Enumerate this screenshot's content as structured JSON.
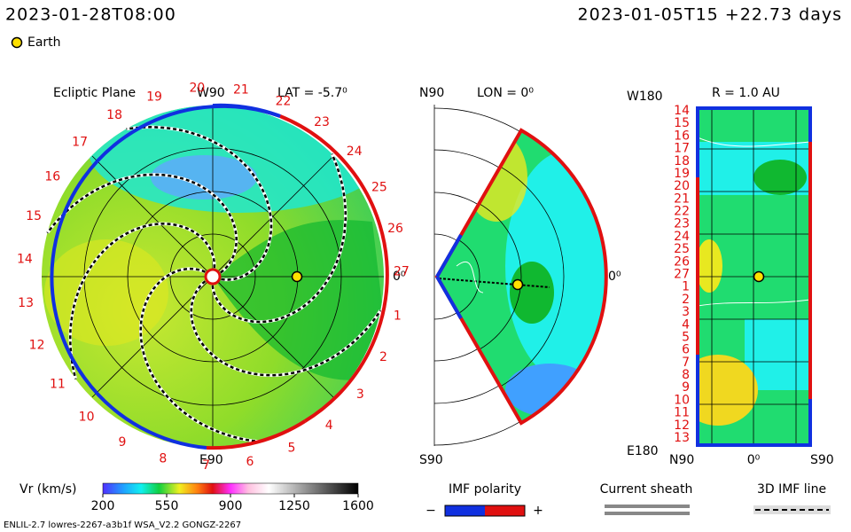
{
  "header": {
    "time": "2023-01-28T08:00",
    "run": "2023-01-05T15 +22.73 days",
    "earth_label": "Earth"
  },
  "ecliptic": {
    "title": "Ecliptic Plane",
    "top": "W90",
    "lat": "LAT = -5.7⁰",
    "right": "0⁰",
    "bottom": "E90",
    "ring_labels": [
      "1",
      "2",
      "3",
      "4",
      "5",
      "6",
      "7",
      "8",
      "9",
      "10",
      "11",
      "12",
      "13",
      "14",
      "15",
      "16",
      "17",
      "18",
      "19",
      "20",
      "21",
      "22",
      "23",
      "24",
      "25",
      "26",
      "27"
    ]
  },
  "meridional": {
    "top": "N90",
    "lon": "LON = 0⁰",
    "right": "0⁰",
    "bottom": "S90"
  },
  "radial": {
    "top_left": "W180",
    "title": "R = 1.0 AU",
    "bottom_left": "E180",
    "left_labels": [
      "14",
      "15",
      "16",
      "17",
      "18",
      "19",
      "20",
      "21",
      "22",
      "23",
      "24",
      "25",
      "26",
      "27",
      "1",
      "2",
      "3",
      "4",
      "5",
      "6",
      "7",
      "8",
      "9",
      "10",
      "11",
      "12",
      "13"
    ],
    "bottom_labels": [
      "N90",
      "0⁰",
      "S90"
    ]
  },
  "colorbar": {
    "label": "Vr (km/s)",
    "ticks": [
      200,
      550,
      900,
      1250,
      1600
    ]
  },
  "legends": {
    "imf_title": "IMF polarity",
    "minus": "−",
    "plus": "+",
    "sheath": "Current sheath",
    "imf_line": "3D IMF line"
  },
  "footer": "ENLIL-2.7 lowres-2267-a3b1f WSA_V2.2 GONGZ-2267"
}
